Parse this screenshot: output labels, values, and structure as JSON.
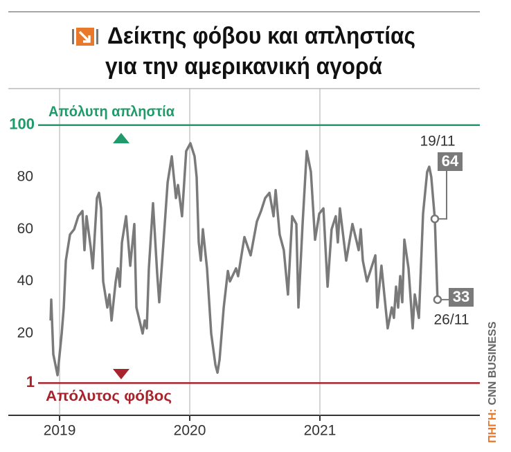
{
  "chart_data": {
    "type": "line",
    "title_lines": [
      "Δείκτης φόβου και απληστίας",
      "για την αμερικανική αγορά"
    ],
    "x": [
      2018.931,
      2018.936,
      2018.952,
      2018.984,
      2019.016,
      2019.032,
      2019.048,
      2019.08,
      2019.112,
      2019.144,
      2019.176,
      2019.191,
      2019.207,
      2019.239,
      2019.255,
      2019.287,
      2019.303,
      2019.319,
      2019.335,
      2019.367,
      2019.383,
      2019.399,
      2019.431,
      2019.447,
      2019.463,
      2019.479,
      2019.511,
      2019.543,
      2019.574,
      2019.59,
      2019.638,
      2019.654,
      2019.67,
      2019.686,
      2019.718,
      2019.75,
      2019.766,
      2019.798,
      2019.83,
      2019.862,
      2019.878,
      2019.894,
      2019.91,
      2019.941,
      2019.973,
      2020.005,
      2020.037,
      2020.053,
      2020.069,
      2020.085,
      2020.101,
      2020.133,
      2020.165,
      2020.197,
      2020.213,
      2020.229,
      2020.261,
      2020.293,
      2020.309,
      2020.356,
      2020.372,
      2020.42,
      2020.468,
      2020.516,
      2020.548,
      2020.58,
      2020.612,
      2020.644,
      2020.66,
      2020.691,
      2020.723,
      2020.755,
      2020.787,
      2020.819,
      2020.835,
      2020.867,
      2020.899,
      2020.931,
      2020.963,
      2020.995,
      2021.027,
      2021.059,
      2021.09,
      2021.122,
      2021.138,
      2021.154,
      2021.202,
      2021.25,
      2021.298,
      2021.314,
      2021.33,
      2021.362,
      2021.426,
      2021.441,
      2021.473,
      2021.521,
      2021.553,
      2021.569,
      2021.585,
      2021.601,
      2021.617,
      2021.633,
      2021.649,
      2021.681,
      2021.713,
      2021.729,
      2021.761,
      2021.793,
      2021.824,
      2021.84,
      2021.856,
      2021.883,
      2021.904
    ],
    "values": [
      25,
      33,
      12,
      4,
      20,
      30,
      48,
      58,
      60,
      65,
      67,
      52,
      65,
      53,
      45,
      72,
      74,
      68,
      40,
      30,
      35,
      25,
      40,
      45,
      38,
      55,
      65,
      46,
      62,
      30,
      20,
      25,
      22,
      45,
      70,
      43,
      32,
      55,
      78,
      88,
      80,
      72,
      77,
      65,
      90,
      93,
      88,
      80,
      55,
      48,
      60,
      45,
      20,
      8,
      5,
      10,
      30,
      44,
      40,
      45,
      42,
      57,
      50,
      63,
      67,
      72,
      74,
      65,
      75,
      58,
      52,
      35,
      65,
      62,
      30,
      62,
      90,
      82,
      56,
      66,
      68,
      38,
      60,
      65,
      55,
      68,
      48,
      62,
      52,
      60,
      48,
      40,
      50,
      30,
      46,
      22,
      30,
      26,
      38,
      30,
      42,
      32,
      56,
      45,
      22,
      35,
      26,
      66,
      82,
      84,
      80,
      64,
      33
    ],
    "color": "#7a7a7a",
    "xlim": [
      2018.606,
      2022.229
    ],
    "xticks": [
      2019,
      2020,
      2021
    ],
    "ylim": [
      -11.4,
      114
    ],
    "yticks": [
      20,
      40,
      60,
      80
    ],
    "reference_lines": [
      {
        "value": 100,
        "label": "Απόλυτη απληστία",
        "color": "#1f9a6a"
      },
      {
        "value": 1,
        "label": "Απόλυτος φόβος",
        "color": "#a8232c"
      }
    ],
    "annotations": [
      {
        "x": 2021.883,
        "value": 64,
        "date": "19/11"
      },
      {
        "x": 2021.904,
        "value": 33,
        "date": "26/11"
      }
    ],
    "source_label": "ΠΗΓΗ:",
    "source": "CNN BUSINESS"
  }
}
